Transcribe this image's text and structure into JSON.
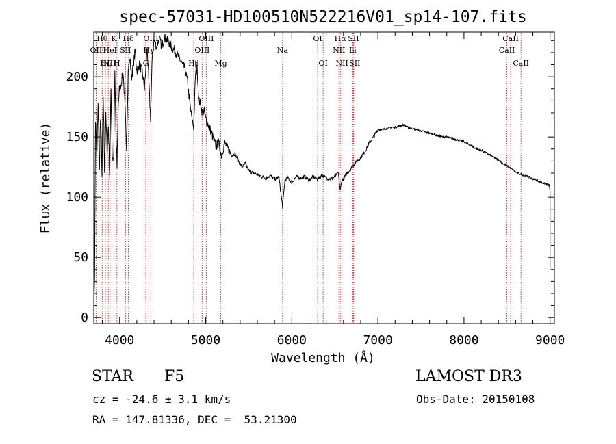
{
  "chart_data": {
    "type": "line",
    "title": "spec-57031-HD100510N522216V01_sp14-107.fits",
    "xlabel": "Wavelength (Å)",
    "ylabel": "Flux (relative)",
    "xlim": [
      3700,
      9050
    ],
    "ylim": [
      -5,
      237
    ],
    "xticks": [
      4000,
      5000,
      6000,
      7000,
      8000,
      9000
    ],
    "yticks": [
      0,
      50,
      100,
      150,
      200
    ],
    "grid": false,
    "series": [
      {
        "name": "spectrum",
        "x": [
          3700,
          3710,
          3720,
          3735,
          3750,
          3765,
          3780,
          3795,
          3810,
          3825,
          3840,
          3855,
          3870,
          3885,
          3900,
          3915,
          3930,
          3945,
          3960,
          3970,
          3985,
          4000,
          4020,
          4040,
          4060,
          4080,
          4100,
          4120,
          4140,
          4160,
          4180,
          4200,
          4230,
          4260,
          4290,
          4320,
          4340,
          4360,
          4380,
          4400,
          4430,
          4460,
          4490,
          4520,
          4550,
          4580,
          4610,
          4640,
          4670,
          4700,
          4730,
          4760,
          4790,
          4820,
          4840,
          4861,
          4880,
          4900,
          4920,
          4940,
          4960,
          4980,
          5000,
          5030,
          5060,
          5090,
          5120,
          5150,
          5183,
          5220,
          5260,
          5300,
          5340,
          5380,
          5420,
          5460,
          5500,
          5550,
          5600,
          5650,
          5700,
          5750,
          5800,
          5850,
          5893,
          5920,
          5960,
          6000,
          6050,
          6100,
          6150,
          6200,
          6250,
          6300,
          6350,
          6400,
          6450,
          6500,
          6540,
          6563,
          6580,
          6600,
          6640,
          6680,
          6720,
          6760,
          6800,
          6850,
          6900,
          6950,
          7000,
          7050,
          7100,
          7150,
          7200,
          7250,
          7300,
          7350,
          7400,
          7450,
          7500,
          7550,
          7600,
          7650,
          7700,
          7750,
          7800,
          7850,
          7900,
          7950,
          8000,
          8050,
          8100,
          8150,
          8200,
          8250,
          8300,
          8350,
          8400,
          8450,
          8500,
          8542,
          8580,
          8620,
          8662,
          8700,
          8750,
          8800,
          8850,
          8900,
          8950,
          8990,
          9000
        ],
        "values": [
          0,
          40,
          165,
          130,
          180,
          120,
          170,
          115,
          185,
          125,
          165,
          140,
          160,
          118,
          190,
          135,
          130,
          200,
          145,
          125,
          180,
          190,
          195,
          205,
          178,
          140,
          205,
          215,
          200,
          210,
          222,
          205,
          210,
          205,
          190,
          225,
          195,
          165,
          218,
          230,
          225,
          232,
          225,
          233,
          230,
          228,
          224,
          222,
          218,
          214,
          210,
          207,
          195,
          175,
          165,
          158,
          200,
          208,
          180,
          178,
          170,
          172,
          165,
          160,
          155,
          148,
          142,
          145,
          135,
          145,
          140,
          135,
          136,
          130,
          125,
          128,
          122,
          120,
          119,
          117,
          116,
          118,
          115,
          117,
          92,
          114,
          116,
          112,
          117,
          116,
          117,
          114,
          117,
          115,
          118,
          116,
          115,
          117,
          120,
          105,
          114,
          115,
          120,
          123,
          127,
          130,
          133,
          138,
          145,
          150,
          156,
          156,
          157,
          158,
          158,
          159,
          160,
          158,
          157,
          156,
          155,
          154,
          153,
          152,
          151,
          150,
          150,
          149,
          148,
          147,
          146,
          144,
          142,
          140,
          139,
          137,
          135,
          133,
          131,
          128,
          126,
          124,
          122,
          120,
          119,
          118,
          117,
          115,
          114,
          112,
          111,
          110,
          105
        ]
      }
    ],
    "lines": [
      {
        "label": "Hθ",
        "x": 3798,
        "row": 0
      },
      {
        "label": "OII",
        "x": 3727,
        "row": 1
      },
      {
        "label": "OIII",
        "x": 3869,
        "row": 2
      },
      {
        "label": "K",
        "x": 3934,
        "row": 0
      },
      {
        "label": "HeI",
        "x": 3889,
        "row": 1
      },
      {
        "label": "Hη",
        "x": 3835,
        "row": 2
      },
      {
        "label": "SII",
        "x": 4069,
        "row": 1
      },
      {
        "label": "H",
        "x": 3969,
        "row": 2
      },
      {
        "label": "Hδ",
        "x": 4102,
        "row": 0
      },
      {
        "label": "OIII",
        "x": 4363,
        "row": 0
      },
      {
        "label": "Hγ",
        "x": 4340,
        "row": 1
      },
      {
        "label": "G",
        "x": 4304,
        "row": 2
      },
      {
        "label": "OIII",
        "x": 5007,
        "row": 0
      },
      {
        "label": "OIII",
        "x": 4959,
        "row": 1
      },
      {
        "label": "Hβ",
        "x": 4861,
        "row": 2
      },
      {
        "label": "Mg",
        "x": 5175,
        "row": 2
      },
      {
        "label": "Na",
        "x": 5893,
        "row": 1
      },
      {
        "label": "OI",
        "x": 6300,
        "row": 0
      },
      {
        "label": "OI",
        "x": 6364,
        "row": 2
      },
      {
        "label": "Hα",
        "x": 6563,
        "row": 0
      },
      {
        "label": "NII",
        "x": 6548,
        "row": 1
      },
      {
        "label": "NII",
        "x": 6583,
        "row": 2
      },
      {
        "label": "SII",
        "x": 6717,
        "row": 0
      },
      {
        "label": "Li",
        "x": 6708,
        "row": 1
      },
      {
        "label": "SII",
        "x": 6731,
        "row": 2
      },
      {
        "label": "CaII",
        "x": 8542,
        "row": 0
      },
      {
        "label": "CaII",
        "x": 8498,
        "row": 1
      },
      {
        "label": "CaII",
        "x": 8662,
        "row": 2
      }
    ]
  },
  "info": {
    "object_class": "STAR",
    "subclass": "F5",
    "survey": "LAMOST DR3",
    "velocity": "cz = -24.6 ± 3.1 km/s",
    "obs_date": "Obs-Date: 20150108",
    "coords": "RA = 147.81336, DEC =  53.21300"
  },
  "colors": {
    "spectrum": "#000000",
    "line_marker": "#cc3333",
    "text": "#000000"
  }
}
